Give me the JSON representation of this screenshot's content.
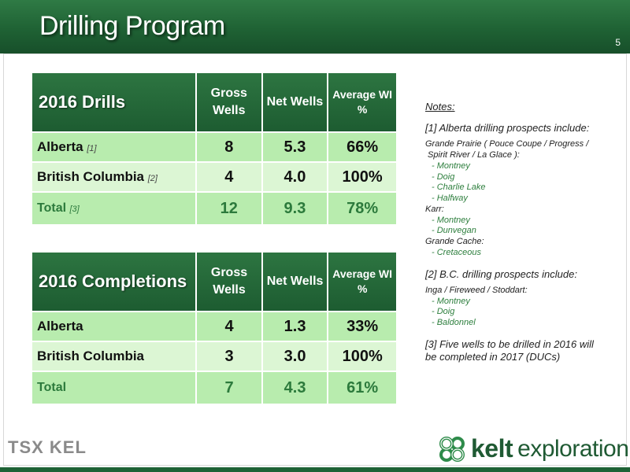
{
  "header": {
    "title": "Drilling Program",
    "slide_number": "5"
  },
  "drills_table": {
    "title": "2016 Drills",
    "columns": [
      "Gross Wells",
      "Net Wells",
      "Average WI %"
    ],
    "rows": [
      {
        "label": "Alberta",
        "footnote": "[1]",
        "gross": "8",
        "net": "5.3",
        "wi": "66%"
      },
      {
        "label": "British Columbia",
        "footnote": "[2]",
        "gross": "4",
        "net": "4.0",
        "wi": "100%"
      },
      {
        "label": "Total",
        "footnote": "[3]",
        "gross": "12",
        "net": "9.3",
        "wi": "78%"
      }
    ]
  },
  "completions_table": {
    "title": "2016 Completions",
    "columns": [
      "Gross Wells",
      "Net Wells",
      "Average WI %"
    ],
    "rows": [
      {
        "label": "Alberta",
        "gross": "4",
        "net": "1.3",
        "wi": "33%"
      },
      {
        "label": "British Columbia",
        "gross": "3",
        "net": "3.0",
        "wi": "100%"
      },
      {
        "label": "Total",
        "gross": "7",
        "net": "4.3",
        "wi": "61%"
      }
    ]
  },
  "notes": {
    "title": "Notes:",
    "note1": "[1] Alberta drilling prospects include:",
    "note1_lines": [
      "Grande Prairie ( Pouce Coupe / Progress /",
      " Spirit River / La Glace ):",
      "- Montney",
      "- Doig",
      "- Charlie Lake",
      "- Halfway",
      "Karr:",
      "- Montney",
      "- Dunvegan",
      "Grande Cache:",
      "- Cretaceous"
    ],
    "note2": "[2] B.C. drilling prospects include:",
    "note2_lines": [
      "Inga / Fireweed / Stoddart:",
      "- Montney",
      "- Doig",
      "- Baldonnel"
    ],
    "note3": "[3] Five wells to be drilled in 2016 will be completed in 2017 (DUCs)"
  },
  "footer": {
    "exchange_logo": "TSX KEL",
    "company_logo_bold": "kelt",
    "company_logo_rest": "exploration",
    "brand_color": "#1e6235",
    "icon": "celtic-knot-icon"
  }
}
